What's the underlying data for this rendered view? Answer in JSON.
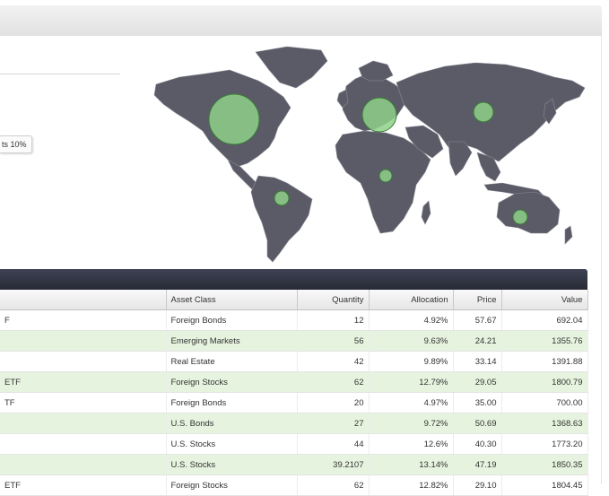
{
  "tooltip": {
    "text": "ts 10%"
  },
  "map": {
    "land_color": "#5a5b66",
    "bubble_color": "#8fd08a",
    "bubble_stroke": "#3a7d36",
    "bubbles": [
      {
        "name": "north-america-bubble"
      },
      {
        "name": "europe-bubble"
      },
      {
        "name": "asia-bubble"
      },
      {
        "name": "africa-bubble"
      },
      {
        "name": "south-america-bubble"
      },
      {
        "name": "australia-bubble"
      }
    ]
  },
  "table": {
    "columns": [
      "",
      "Asset Class",
      "Quantity",
      "Allocation",
      "Price",
      "Value"
    ],
    "rows": [
      {
        "name": "F",
        "asset_class": "Foreign Bonds",
        "quantity": "12",
        "allocation": "4.92%",
        "price": "57.67",
        "value": "692.04"
      },
      {
        "name": "",
        "asset_class": "Emerging Markets",
        "quantity": "56",
        "allocation": "9.63%",
        "price": "24.21",
        "value": "1355.76"
      },
      {
        "name": "",
        "asset_class": "Real Estate",
        "quantity": "42",
        "allocation": "9.89%",
        "price": "33.14",
        "value": "1391.88"
      },
      {
        "name": "ETF",
        "asset_class": "Foreign Stocks",
        "quantity": "62",
        "allocation": "12.79%",
        "price": "29.05",
        "value": "1800.79"
      },
      {
        "name": "TF",
        "asset_class": "Foreign Bonds",
        "quantity": "20",
        "allocation": "4.97%",
        "price": "35.00",
        "value": "700.00"
      },
      {
        "name": "",
        "asset_class": "U.S. Bonds",
        "quantity": "27",
        "allocation": "9.72%",
        "price": "50.69",
        "value": "1368.63"
      },
      {
        "name": "",
        "asset_class": "U.S. Stocks",
        "quantity": "44",
        "allocation": "12.6%",
        "price": "40.30",
        "value": "1773.20"
      },
      {
        "name": "",
        "asset_class": "U.S. Stocks",
        "quantity": "39.2107",
        "allocation": "13.14%",
        "price": "47.19",
        "value": "1850.35"
      },
      {
        "name": "ETF",
        "asset_class": "Foreign Stocks",
        "quantity": "62",
        "allocation": "12.82%",
        "price": "29.10",
        "value": "1804.45"
      }
    ]
  }
}
